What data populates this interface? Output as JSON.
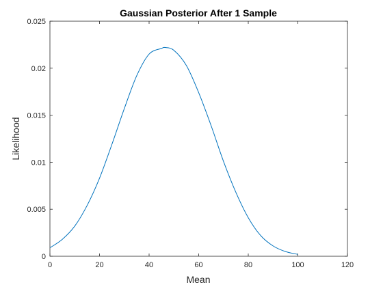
{
  "chart_data": {
    "type": "line",
    "title": "Gaussian Posterior After 1 Sample",
    "xlabel": "Mean",
    "ylabel": "Likelihood",
    "xlim": [
      0,
      120
    ],
    "ylim": [
      0,
      0.025
    ],
    "xticks": [
      0,
      20,
      40,
      60,
      80,
      100,
      120
    ],
    "yticks": [
      0,
      0.005,
      0.01,
      0.015,
      0.02,
      0.025
    ],
    "xtick_labels": [
      "0",
      "20",
      "40",
      "60",
      "80",
      "100",
      "120"
    ],
    "ytick_labels": [
      "0",
      "0.005",
      "0.01",
      "0.015",
      "0.02",
      "0.025"
    ],
    "grid": false,
    "series": [
      {
        "color": "#0072BD",
        "x": [
          0,
          5,
          10,
          15,
          20,
          25,
          30,
          35,
          40,
          45,
          46.5,
          50,
          55,
          60,
          65,
          70,
          75,
          80,
          85,
          90,
          95,
          100
        ],
        "y": [
          0.0009,
          0.0018,
          0.0032,
          0.0054,
          0.0083,
          0.0119,
          0.0157,
          0.0192,
          0.0215,
          0.0221,
          0.0222,
          0.0219,
          0.0203,
          0.0174,
          0.0139,
          0.0101,
          0.0068,
          0.0041,
          0.0022,
          0.0011,
          0.0005,
          0.0002
        ]
      }
    ]
  }
}
